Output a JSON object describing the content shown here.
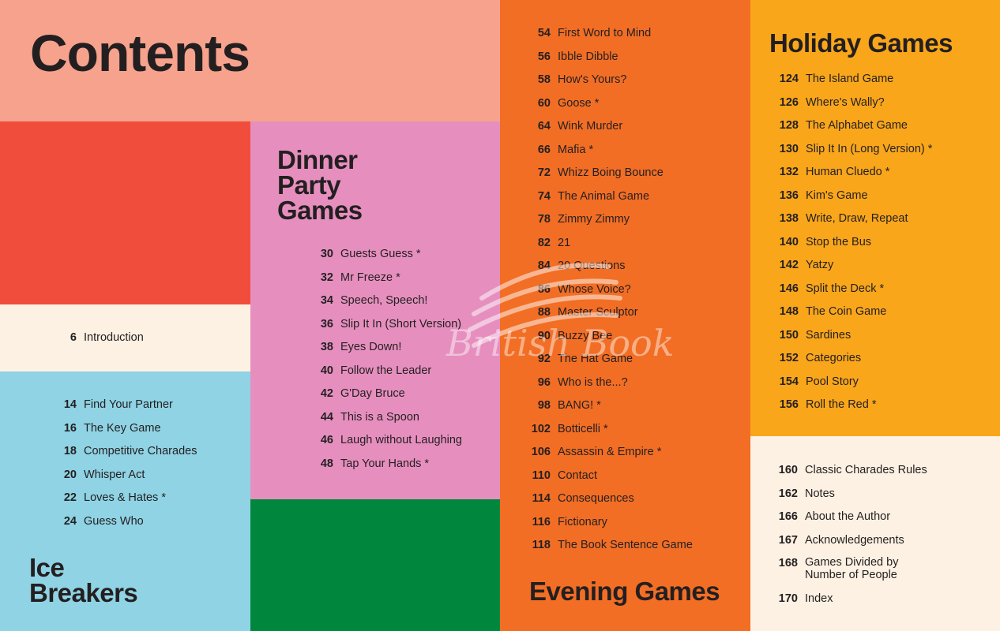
{
  "colors": {
    "salmon": "#f6a28c",
    "red": "#f14d3d",
    "cream": "#fdf1e3",
    "blue": "#8fd3e4",
    "pink": "#e68fbf",
    "green": "#00873d",
    "orange": "#f26e25",
    "yellow": "#f9a61b",
    "text": "#231f20"
  },
  "heading": "Contents",
  "intro": {
    "num": "6",
    "title": "Introduction"
  },
  "ice_breakers": {
    "title_line1": "Ice",
    "title_line2": "Breakers",
    "items": [
      {
        "num": "14",
        "title": "Find Your Partner"
      },
      {
        "num": "16",
        "title": "The Key Game"
      },
      {
        "num": "18",
        "title": "Competitive Charades"
      },
      {
        "num": "20",
        "title": "Whisper Act"
      },
      {
        "num": "22",
        "title": "Loves & Hates *"
      },
      {
        "num": "24",
        "title": "Guess Who"
      }
    ]
  },
  "dinner_party": {
    "title_line1": "Dinner",
    "title_line2": "Party",
    "title_line3": "Games",
    "items": [
      {
        "num": "30",
        "title": "Guests Guess *"
      },
      {
        "num": "32",
        "title": "Mr Freeze *"
      },
      {
        "num": "34",
        "title": "Speech, Speech!"
      },
      {
        "num": "36",
        "title": "Slip It In (Short Version)"
      },
      {
        "num": "38",
        "title": "Eyes Down!"
      },
      {
        "num": "40",
        "title": "Follow the Leader"
      },
      {
        "num": "42",
        "title": "G'Day Bruce"
      },
      {
        "num": "44",
        "title": "This is a Spoon"
      },
      {
        "num": "46",
        "title": "Laugh without Laughing"
      },
      {
        "num": "48",
        "title": "Tap Your Hands *"
      }
    ]
  },
  "evening": {
    "title": "Evening Games",
    "items": [
      {
        "num": "54",
        "title": "First Word to Mind"
      },
      {
        "num": "56",
        "title": "Ibble Dibble"
      },
      {
        "num": "58",
        "title": "How's Yours?"
      },
      {
        "num": "60",
        "title": "Goose *"
      },
      {
        "num": "64",
        "title": "Wink Murder"
      },
      {
        "num": "66",
        "title": "Mafia *"
      },
      {
        "num": "72",
        "title": "Whizz Boing Bounce"
      },
      {
        "num": "74",
        "title": "The Animal Game"
      },
      {
        "num": "78",
        "title": "Zimmy Zimmy"
      },
      {
        "num": "82",
        "title": "21"
      },
      {
        "num": "84",
        "title": "20 Questions"
      },
      {
        "num": "86",
        "title": "Whose Voice?"
      },
      {
        "num": "88",
        "title": "Master Sculptor"
      },
      {
        "num": "90",
        "title": "Buzzy Bee"
      },
      {
        "num": "92",
        "title": "The Hat Game"
      },
      {
        "num": "96",
        "title": "Who is the...?"
      },
      {
        "num": "98",
        "title": "BANG! *"
      },
      {
        "num": "102",
        "title": "Botticelli *"
      },
      {
        "num": "106",
        "title": "Assassin & Empire *"
      },
      {
        "num": "110",
        "title": "Contact"
      },
      {
        "num": "114",
        "title": "Consequences"
      },
      {
        "num": "116",
        "title": "Fictionary"
      },
      {
        "num": "118",
        "title": "The Book Sentence Game"
      }
    ]
  },
  "holiday": {
    "title": "Holiday Games",
    "items": [
      {
        "num": "124",
        "title": "The Island Game"
      },
      {
        "num": "126",
        "title": "Where's Wally?"
      },
      {
        "num": "128",
        "title": "The Alphabet Game"
      },
      {
        "num": "130",
        "title": "Slip It In (Long Version) *"
      },
      {
        "num": "132",
        "title": "Human Cluedo *"
      },
      {
        "num": "136",
        "title": "Kim's Game"
      },
      {
        "num": "138",
        "title": "Write, Draw, Repeat"
      },
      {
        "num": "140",
        "title": "Stop the Bus"
      },
      {
        "num": "142",
        "title": "Yatzy"
      },
      {
        "num": "146",
        "title": "Split the Deck *"
      },
      {
        "num": "148",
        "title": "The Coin Game"
      },
      {
        "num": "150",
        "title": "Sardines"
      },
      {
        "num": "152",
        "title": "Categories"
      },
      {
        "num": "154",
        "title": "Pool Story"
      },
      {
        "num": "156",
        "title": "Roll the Red *"
      }
    ]
  },
  "back_matter": {
    "items": [
      {
        "num": "160",
        "title": "Classic Charades Rules"
      },
      {
        "num": "162",
        "title": "Notes"
      },
      {
        "num": "166",
        "title": "About the Author"
      },
      {
        "num": "167",
        "title": "Acknowledgements"
      },
      {
        "num": "168",
        "title": "Games Divided by Number of People"
      },
      {
        "num": "170",
        "title": "Index"
      }
    ]
  },
  "watermark": "British Book"
}
